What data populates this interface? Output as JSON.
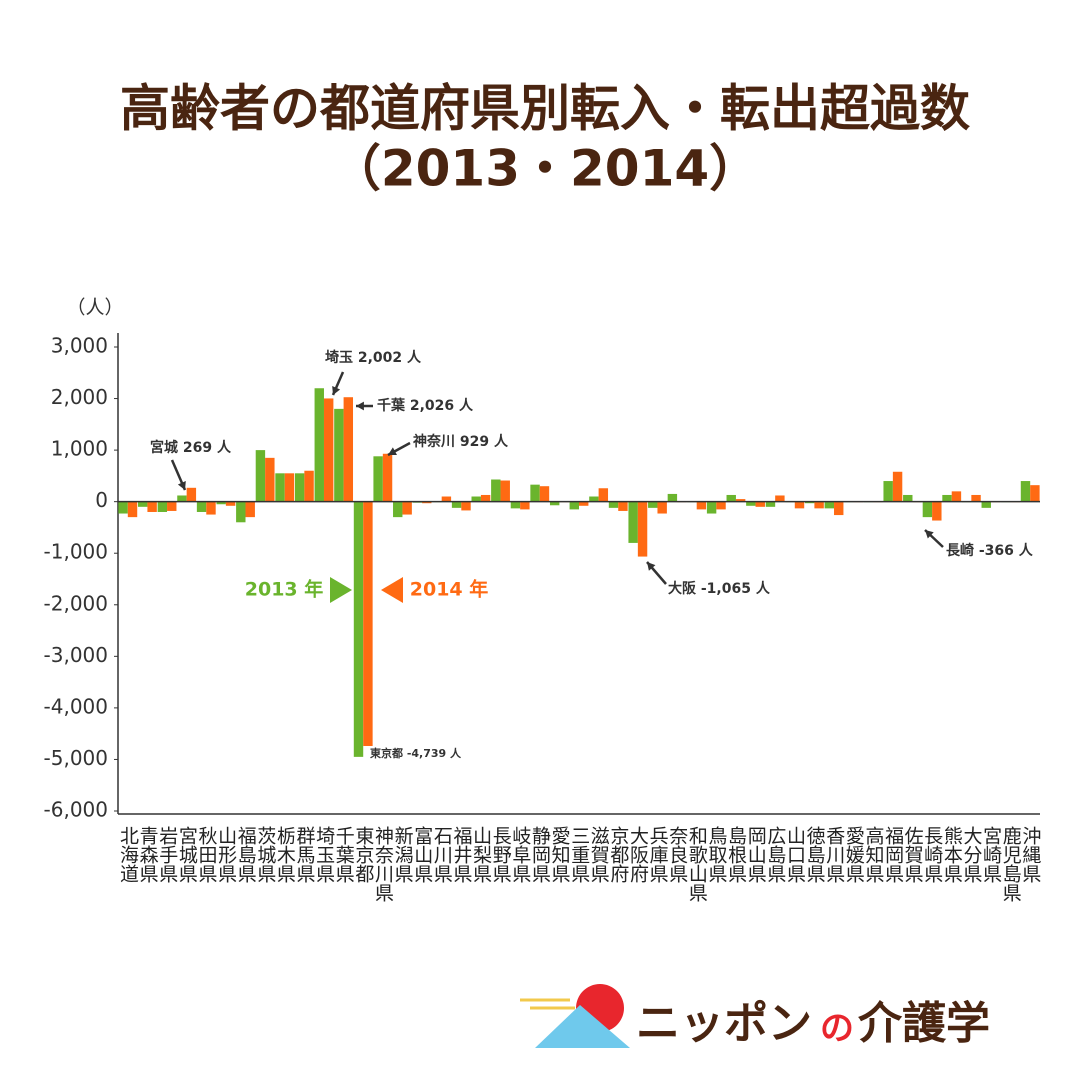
{
  "chart_data": {
    "type": "bar",
    "title": "高齢者の都道府県別転入・転出超過数",
    "subtitle": "（2013・2014）",
    "y_unit": "（人）",
    "categories": [
      "北海道",
      "青森県",
      "岩手県",
      "宮城県",
      "秋田県",
      "山形県",
      "福島県",
      "茨城県",
      "栃木県",
      "群馬県",
      "埼玉県",
      "千葉県",
      "東京都",
      "神奈川県",
      "新潟県",
      "富山県",
      "石川県",
      "福井県",
      "山梨県",
      "長野県",
      "岐阜県",
      "静岡県",
      "愛知県",
      "三重県",
      "滋賀県",
      "京都府",
      "大阪府",
      "兵庫県",
      "奈良県",
      "和歌山県",
      "鳥取県",
      "島根県",
      "岡山県",
      "広島県",
      "山口県",
      "徳島県",
      "香川県",
      "愛媛県",
      "高知県",
      "福岡県",
      "佐賀県",
      "長崎県",
      "熊本県",
      "大分県",
      "宮崎県",
      "鹿児島県",
      "沖縄県"
    ],
    "series": [
      {
        "name": "2013 年",
        "color": "#6ab42d",
        "values": [
          -230,
          -100,
          -200,
          120,
          -200,
          -50,
          -400,
          1000,
          550,
          550,
          2200,
          1800,
          -4950,
          880,
          -300,
          -20,
          0,
          -120,
          100,
          430,
          -130,
          330,
          -70,
          -150,
          100,
          -120,
          -800,
          -120,
          150,
          0,
          -230,
          130,
          -80,
          -100,
          0,
          -30,
          -130,
          0,
          0,
          400,
          130,
          -300,
          130,
          0,
          -120,
          0,
          400
        ]
      },
      {
        "name": "2014 年",
        "color": "#ff6a13",
        "values": [
          -300,
          -200,
          -180,
          269,
          -250,
          -80,
          -300,
          850,
          550,
          600,
          2002,
          2026,
          -4739,
          929,
          -250,
          -30,
          100,
          -170,
          130,
          410,
          -150,
          300,
          0,
          -80,
          260,
          -180,
          -1065,
          -230,
          0,
          -150,
          -150,
          50,
          -100,
          120,
          -130,
          -130,
          -260,
          0,
          0,
          580,
          0,
          -366,
          200,
          130,
          0,
          0,
          320
        ]
      }
    ],
    "ylim": [
      -6000,
      3000
    ],
    "yticks": [
      {
        "value": -6000,
        "label": "-6,000"
      },
      {
        "value": -5000,
        "label": "-5,000"
      },
      {
        "value": -4000,
        "label": "-4,000"
      },
      {
        "value": -3000,
        "label": "-3,000"
      },
      {
        "value": -2000,
        "label": "-2,000"
      },
      {
        "value": -1000,
        "label": "-1,000"
      },
      0,
      {
        "value": 1000,
        "label": "1,000"
      },
      {
        "value": 2000,
        "label": "2,000"
      },
      {
        "value": 3000,
        "label": "3,000"
      }
    ],
    "annotations": [
      "宮城 269 人",
      "埼玉 2,002 人",
      "千葉 2,026 人",
      "神奈川 929 人",
      "東京都 -4,739 人",
      "大阪 -1,065 人",
      "長崎 -366 人"
    ]
  },
  "logo": {
    "brand": "ニッポン",
    "particle": "の",
    "name": "介護学"
  }
}
